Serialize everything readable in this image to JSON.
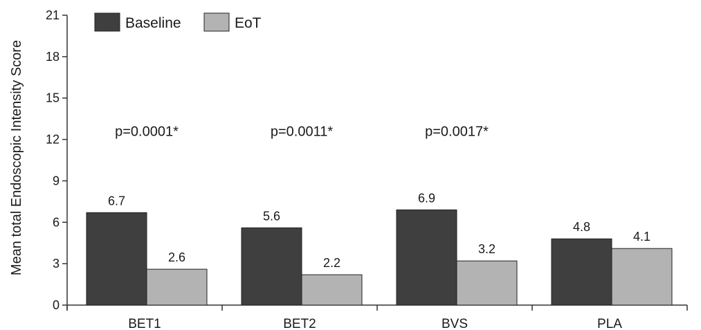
{
  "chart_data": {
    "type": "bar",
    "ylabel": "Mean total Endoscopic Intensity Score",
    "xlabel": "",
    "ylim": [
      0,
      21
    ],
    "yticks": [
      0,
      3,
      6,
      9,
      12,
      15,
      18,
      21
    ],
    "grid": false,
    "legend_position": "top-left",
    "categories": [
      "BET1",
      "BET2",
      "BVS",
      "PLA"
    ],
    "series": [
      {
        "name": "Baseline",
        "values": [
          6.7,
          5.6,
          6.9,
          4.8
        ],
        "labels": [
          "6.7",
          "5.6",
          "6.9",
          "4.8"
        ],
        "color": "#3f3f3f"
      },
      {
        "name": "EoT",
        "values": [
          2.6,
          2.2,
          3.2,
          4.1
        ],
        "labels": [
          "2.6",
          "2.2",
          "3.2",
          "4.1"
        ],
        "color": "#b3b3b3"
      }
    ],
    "annotations": [
      {
        "category": "BET1",
        "text": "p=0.0001*",
        "y": 12.6
      },
      {
        "category": "BET2",
        "text": "p=0.0011*",
        "y": 12.6
      },
      {
        "category": "BVS",
        "text": "p=0.0017*",
        "y": 12.6
      }
    ]
  }
}
